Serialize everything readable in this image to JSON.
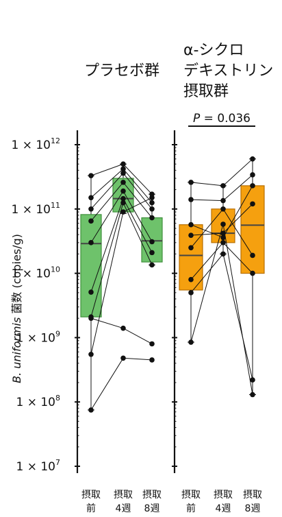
{
  "chart_data": [
    {
      "type": "box",
      "title": "プラセボ群",
      "ylabel": "B. uniformis 菌数 (copies/g)",
      "yscale": "log",
      "ylim": [
        5000000.0,
        2000000000000.0
      ],
      "yticks": [
        {
          "base": "1 × 10",
          "exp": "7"
        },
        {
          "base": "1 × 10",
          "exp": "8"
        },
        {
          "base": "1 × 10",
          "exp": "9"
        },
        {
          "base": "1 × 10",
          "exp": "10"
        },
        {
          "base": "1 × 10",
          "exp": "11"
        },
        {
          "base": "1 × 10",
          "exp": "12"
        }
      ],
      "categories": [
        {
          "line1": "摂取",
          "line2": "前"
        },
        {
          "line1": "摂取",
          "line2": "4週"
        },
        {
          "line1": "摂取",
          "line2": "8週"
        }
      ],
      "color": "#6ec26b",
      "edge_color": "#3f8f3c",
      "boxes": [
        {
          "q1": 2100000000.0,
          "median": 29000000000.0,
          "q3": 82000000000.0,
          "whisker_low": 75000000.0,
          "whisker_high": 330000000000.0
        },
        {
          "q1": 90000000000.0,
          "median": 145000000000.0,
          "q3": 300000000000.0,
          "whisker_low": 85000000000.0,
          "whisker_high": 500000000000.0
        },
        {
          "q1": 15000000000.0,
          "median": 32000000000.0,
          "q3": 73000000000.0,
          "whisker_low": 13500000000.0,
          "whisker_high": 170000000000.0
        }
      ],
      "subjects": [
        [
          330000000000.0,
          500000000000.0,
          170000000000.0
        ],
        [
          150000000000.0,
          420000000000.0,
          125000000000.0
        ],
        [
          100000000000.0,
          360000000000.0,
          100000000000.0
        ],
        [
          65000000000.0,
          260000000000.0,
          73000000000.0
        ],
        [
          30000000000.0,
          190000000000.0,
          31000000000.0
        ],
        [
          5100000000.0,
          145000000000.0,
          21000000000.0
        ],
        [
          2100000000.0,
          125000000000.0,
          13500000000.0
        ],
        [
          550000000.0,
          90000000000.0,
          150000000000.0
        ],
        [
          75000000.0,
          480000000.0,
          450000000.0
        ],
        [
          2000000000.0,
          1400000000.0,
          800000000.0
        ]
      ]
    },
    {
      "type": "box",
      "title_lines": [
        "α-シクロ",
        "デキストリン",
        "摂取群"
      ],
      "yscale": "log",
      "ylim": [
        5000000.0,
        2000000000000.0
      ],
      "categories": [
        {
          "line1": "摂取",
          "line2": "前"
        },
        {
          "line1": "摂取",
          "line2": "4週"
        },
        {
          "line1": "摂取",
          "line2": "8週"
        }
      ],
      "color": "#f5a00f",
      "edge_color": "#b86e00",
      "significance": {
        "from": 0,
        "to": 2,
        "p_symbol": "P",
        "p_value": "= 0.036"
      },
      "boxes": [
        {
          "q1": 5500000000.0,
          "median": 19000000000.0,
          "q3": 57000000000.0,
          "whisker_low": 850000000.0,
          "whisker_high": 260000000000.0
        },
        {
          "q1": 30000000000.0,
          "median": 42000000000.0,
          "q3": 100000000000.0,
          "whisker_low": 20000000000.0,
          "whisker_high": 230000000000.0
        },
        {
          "q1": 10000000000.0,
          "median": 56000000000.0,
          "q3": 230000000000.0,
          "whisker_low": 130000000.0,
          "whisker_high": 600000000000.0
        }
      ],
      "subjects": [
        [
          260000000000.0,
          230000000000.0,
          600000000000.0
        ],
        [
          140000000000.0,
          135000000000.0,
          340000000000.0
        ],
        [
          57000000000.0,
          36000000000.0,
          230000000000.0
        ],
        [
          39000000000.0,
          42000000000.0,
          120000000000.0
        ],
        [
          25000000000.0,
          100000000000.0,
          19000000000.0
        ],
        [
          8000000000.0,
          30000000000.0,
          10000000000.0
        ],
        [
          5000000000.0,
          20000000000.0,
          220000000.0
        ],
        [
          850000000.0,
          58000000000.0,
          130000000.0
        ]
      ]
    }
  ]
}
